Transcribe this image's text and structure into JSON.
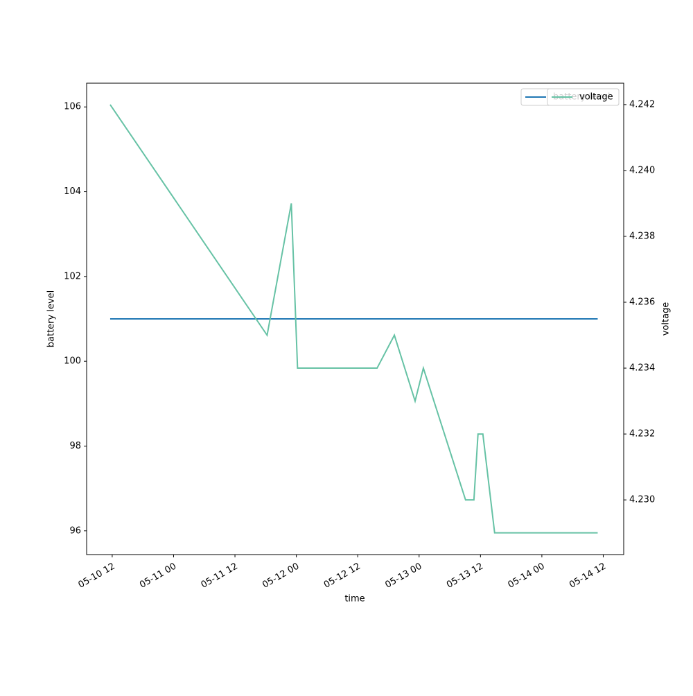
{
  "chart_data": {
    "type": "line",
    "x_label": "time",
    "y_label": "battery level",
    "y2_label": "voltage",
    "x": [
      "05-10 11:36",
      "05-11 18:17",
      "05-11 23:01",
      "05-12 00:14",
      "05-12 15:47",
      "05-12 19:10",
      "05-12 23:13",
      "05-13 00:50",
      "05-13 09:05",
      "05-13 10:43",
      "05-13 11:31",
      "05-13 12:28",
      "05-13 14:46",
      "05-14 10:55"
    ],
    "series": [
      {
        "name": "battery level",
        "color": "#1f77b4",
        "values": [
          101,
          101,
          101,
          101,
          101,
          101,
          101,
          101,
          101,
          101,
          101,
          101,
          101,
          101
        ]
      },
      {
        "name": "voltage",
        "color": "#66c2a5",
        "axis": "y2",
        "values": [
          4.242,
          4.235,
          4.239,
          4.234,
          4.234,
          4.235,
          4.233,
          4.234,
          4.23,
          4.23,
          4.232,
          4.232,
          4.229,
          4.229
        ]
      }
    ],
    "xlim": [
      "05-10 07",
      "05-14 16"
    ],
    "xticks": [
      "05-10 12",
      "05-11 00",
      "05-11 12",
      "05-12 00",
      "05-12 12",
      "05-13 00",
      "05-13 12",
      "05-14 00",
      "05-14 12"
    ],
    "ylim": [
      95.44,
      106.56
    ],
    "yticks": [
      96,
      98,
      100,
      102,
      104,
      106
    ],
    "y2lim": [
      4.22834,
      4.24265
    ],
    "y2ticks": [
      {
        "value": 4.23,
        "label": "4.230"
      },
      {
        "value": 4.232,
        "label": "4.232"
      },
      {
        "value": 4.234,
        "label": "4.234"
      },
      {
        "value": 4.236,
        "label": "4.236"
      },
      {
        "value": 4.238,
        "label": "4.238"
      },
      {
        "value": 4.24,
        "label": "4.240"
      },
      {
        "value": 4.242,
        "label": "4.242"
      }
    ],
    "legend": "upper right",
    "grid": false
  }
}
